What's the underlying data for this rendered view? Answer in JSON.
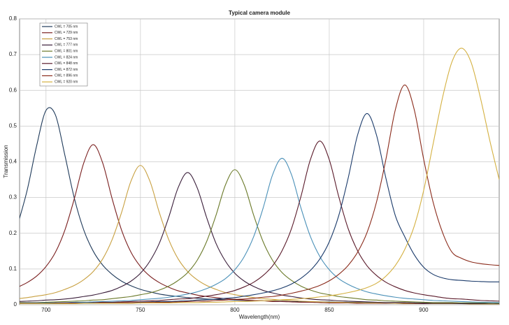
{
  "chart_data": {
    "type": "line",
    "title": "Typical camera module",
    "x_label": "Wavelength(nm)",
    "y_label": "Transmission",
    "x": [
      685,
      690,
      695,
      700,
      705,
      710,
      715,
      720,
      725,
      730,
      735,
      740,
      745,
      750,
      755,
      760,
      765,
      770,
      775,
      780,
      785,
      790,
      795,
      800,
      805,
      810,
      815,
      820,
      825,
      830,
      835,
      840,
      845,
      850,
      855,
      860,
      865,
      870,
      875,
      880,
      885,
      890,
      895,
      900,
      905,
      910,
      915,
      920,
      925,
      930,
      935,
      940
    ],
    "xlim": [
      686,
      940
    ],
    "xticks": [
      700,
      750,
      800,
      850,
      900
    ],
    "ylim": [
      0,
      0.8
    ],
    "yticks": [
      0,
      0.1,
      0.2,
      0.3,
      0.4,
      0.5,
      0.6,
      0.7,
      0.8
    ],
    "grid": true,
    "legend": "upper left",
    "series": [
      {
        "name": "CWL = 705 nm",
        "color": "#1f3a5a",
        "values": [
          0.224,
          0.32,
          0.444,
          0.544,
          0.531,
          0.418,
          0.298,
          0.209,
          0.15,
          0.111,
          0.085,
          0.066,
          0.053,
          0.043,
          0.036,
          0.03,
          0.026,
          0.023,
          0.02,
          0.018,
          0.016,
          0.015,
          0.014,
          0.013,
          0.012,
          0.011,
          0.011,
          0.01,
          0.01,
          0.009,
          0.009,
          0.008,
          0.008,
          0.008,
          0.007,
          0.007,
          0.007,
          0.006,
          0.006,
          0.006,
          0.006,
          0.006,
          0.005,
          0.005,
          0.005,
          0.005,
          0.005,
          0.005,
          0.005,
          0.005,
          0.004,
          0.004
        ]
      },
      {
        "name": "CWL = 729 nm",
        "color": "#7a1f1f",
        "values": [
          0.049,
          0.062,
          0.08,
          0.107,
          0.147,
          0.209,
          0.297,
          0.397,
          0.448,
          0.397,
          0.297,
          0.209,
          0.147,
          0.107,
          0.08,
          0.062,
          0.049,
          0.039,
          0.033,
          0.027,
          0.023,
          0.02,
          0.017,
          0.015,
          0.013,
          0.012,
          0.011,
          0.009,
          0.009,
          0.008,
          0.007,
          0.007,
          0.006,
          0.005,
          0.005,
          0.005,
          0.004,
          0.004,
          0.004,
          0.004,
          0.004,
          0.003,
          0.003,
          0.003,
          0.003,
          0.003,
          0.003,
          0.003,
          0.003,
          0.003,
          0.003,
          0.003
        ]
      },
      {
        "name": "CWL = 753 nm",
        "color": "#c8a040",
        "values": [
          0.017,
          0.02,
          0.024,
          0.028,
          0.034,
          0.043,
          0.054,
          0.07,
          0.093,
          0.128,
          0.182,
          0.258,
          0.346,
          0.39,
          0.346,
          0.258,
          0.182,
          0.128,
          0.093,
          0.07,
          0.054,
          0.043,
          0.034,
          0.028,
          0.024,
          0.02,
          0.017,
          0.015,
          0.013,
          0.012,
          0.01,
          0.009,
          0.008,
          0.007,
          0.007,
          0.006,
          0.006,
          0.005,
          0.005,
          0.005,
          0.004,
          0.004,
          0.004,
          0.004,
          0.003,
          0.003,
          0.003,
          0.003,
          0.002,
          0.002,
          0.002,
          0.002
        ]
      },
      {
        "name": "CWL = 777 nm",
        "color": "#3a1e3a",
        "values": [
          0.009,
          0.01,
          0.011,
          0.013,
          0.014,
          0.016,
          0.019,
          0.023,
          0.027,
          0.033,
          0.04,
          0.051,
          0.066,
          0.088,
          0.122,
          0.172,
          0.245,
          0.328,
          0.37,
          0.328,
          0.245,
          0.172,
          0.122,
          0.088,
          0.066,
          0.051,
          0.04,
          0.033,
          0.027,
          0.023,
          0.019,
          0.016,
          0.014,
          0.013,
          0.011,
          0.01,
          0.009,
          0.008,
          0.007,
          0.006,
          0.006,
          0.006,
          0.005,
          0.004,
          0.004,
          0.004,
          0.004,
          0.003,
          0.003,
          0.003,
          0.003,
          0.003
        ]
      },
      {
        "name": "CWL = 801 nm",
        "color": "#6b7a2a",
        "values": [
          0.006,
          0.006,
          0.006,
          0.007,
          0.008,
          0.009,
          0.01,
          0.011,
          0.013,
          0.014,
          0.017,
          0.02,
          0.023,
          0.028,
          0.033,
          0.041,
          0.052,
          0.068,
          0.09,
          0.124,
          0.176,
          0.25,
          0.335,
          0.378,
          0.335,
          0.25,
          0.176,
          0.124,
          0.09,
          0.068,
          0.052,
          0.041,
          0.033,
          0.028,
          0.023,
          0.02,
          0.017,
          0.014,
          0.013,
          0.011,
          0.01,
          0.009,
          0.008,
          0.007,
          0.006,
          0.006,
          0.006,
          0.005,
          0.005,
          0.005,
          0.004,
          0.004
        ]
      },
      {
        "name": "CWL = 824 nm",
        "color": "#4a90b8",
        "values": [
          0.004,
          0.005,
          0.005,
          0.005,
          0.005,
          0.006,
          0.007,
          0.007,
          0.008,
          0.009,
          0.01,
          0.011,
          0.012,
          0.014,
          0.016,
          0.018,
          0.021,
          0.025,
          0.03,
          0.036,
          0.045,
          0.057,
          0.073,
          0.098,
          0.135,
          0.191,
          0.271,
          0.364,
          0.41,
          0.364,
          0.271,
          0.191,
          0.135,
          0.098,
          0.073,
          0.057,
          0.045,
          0.036,
          0.03,
          0.025,
          0.021,
          0.018,
          0.016,
          0.014,
          0.012,
          0.011,
          0.01,
          0.009,
          0.008,
          0.007,
          0.007,
          0.006
        ]
      },
      {
        "name": "CWL = 848 nm",
        "color": "#5a1a2a",
        "values": [
          0.004,
          0.004,
          0.004,
          0.004,
          0.005,
          0.005,
          0.005,
          0.005,
          0.006,
          0.007,
          0.007,
          0.008,
          0.009,
          0.01,
          0.011,
          0.012,
          0.014,
          0.016,
          0.017,
          0.02,
          0.024,
          0.028,
          0.033,
          0.04,
          0.05,
          0.063,
          0.082,
          0.109,
          0.151,
          0.213,
          0.303,
          0.406,
          0.458,
          0.406,
          0.303,
          0.213,
          0.151,
          0.109,
          0.082,
          0.063,
          0.05,
          0.04,
          0.033,
          0.028,
          0.024,
          0.02,
          0.017,
          0.016,
          0.014,
          0.012,
          0.011,
          0.01
        ]
      },
      {
        "name": "CWL = 872 nm",
        "color": "#1a3a6a",
        "values": [
          0.003,
          0.003,
          0.003,
          0.004,
          0.004,
          0.004,
          0.004,
          0.005,
          0.005,
          0.005,
          0.006,
          0.006,
          0.006,
          0.007,
          0.008,
          0.009,
          0.009,
          0.01,
          0.011,
          0.013,
          0.014,
          0.016,
          0.018,
          0.02,
          0.024,
          0.028,
          0.033,
          0.039,
          0.047,
          0.058,
          0.074,
          0.096,
          0.128,
          0.176,
          0.249,
          0.354,
          0.475,
          0.535,
          0.475,
          0.354,
          0.249,
          0.19,
          0.14,
          0.105,
          0.085,
          0.075,
          0.07,
          0.068,
          0.066,
          0.065,
          0.064,
          0.064
        ]
      },
      {
        "name": "CWL = 896 nm",
        "color": "#8a2a1a",
        "values": [
          0.003,
          0.003,
          0.003,
          0.003,
          0.003,
          0.004,
          0.004,
          0.004,
          0.004,
          0.005,
          0.005,
          0.006,
          0.006,
          0.006,
          0.007,
          0.007,
          0.007,
          0.008,
          0.009,
          0.01,
          0.01,
          0.012,
          0.013,
          0.015,
          0.016,
          0.018,
          0.021,
          0.023,
          0.027,
          0.032,
          0.038,
          0.045,
          0.054,
          0.067,
          0.085,
          0.11,
          0.147,
          0.202,
          0.287,
          0.407,
          0.546,
          0.615,
          0.546,
          0.407,
          0.287,
          0.202,
          0.147,
          0.13,
          0.12,
          0.115,
          0.112,
          0.11
        ]
      },
      {
        "name": "CWL = 920 nm",
        "color": "#d4b040",
        "values": [
          0.003,
          0.003,
          0.003,
          0.003,
          0.003,
          0.003,
          0.003,
          0.004,
          0.004,
          0.004,
          0.004,
          0.004,
          0.004,
          0.005,
          0.005,
          0.005,
          0.005,
          0.006,
          0.006,
          0.006,
          0.007,
          0.007,
          0.008,
          0.009,
          0.009,
          0.01,
          0.011,
          0.012,
          0.014,
          0.015,
          0.017,
          0.019,
          0.022,
          0.025,
          0.029,
          0.034,
          0.04,
          0.048,
          0.06,
          0.08,
          0.11,
          0.155,
          0.22,
          0.32,
          0.45,
          0.58,
          0.68,
          0.718,
          0.68,
          0.58,
          0.46,
          0.35
        ]
      }
    ]
  }
}
